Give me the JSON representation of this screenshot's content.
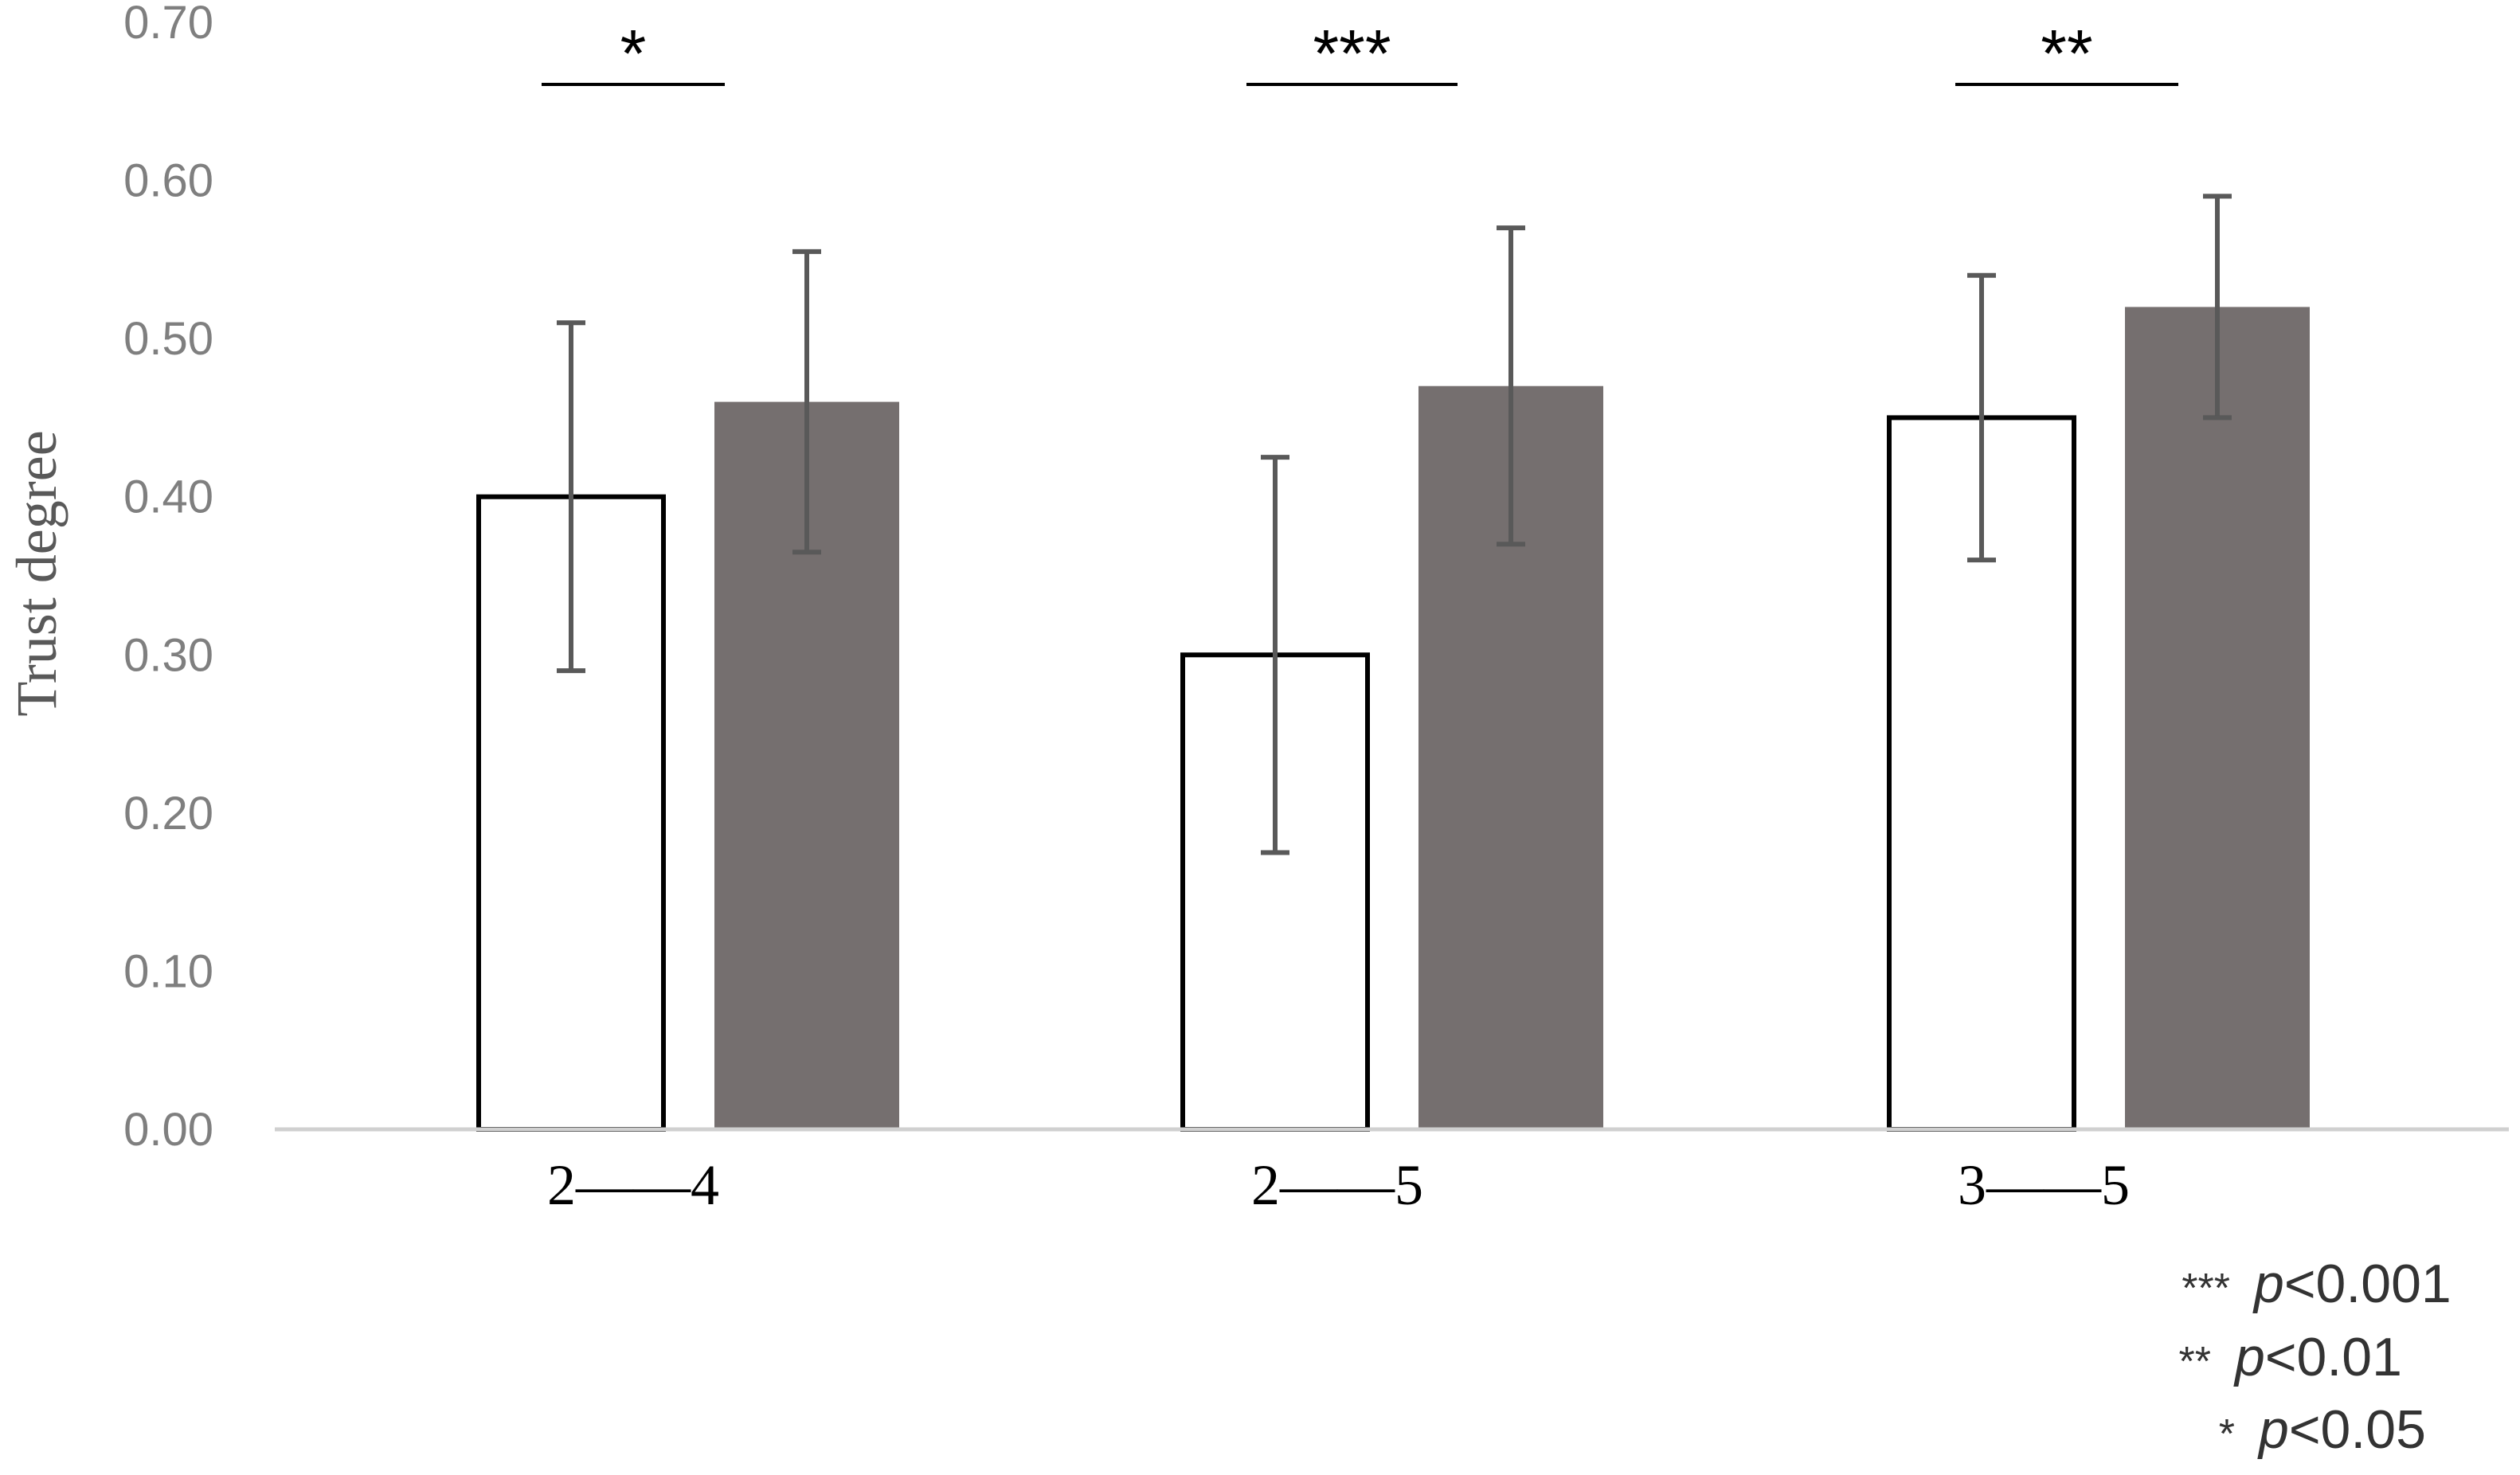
{
  "chart_data": {
    "type": "bar",
    "title": "",
    "xlabel": "",
    "ylabel": "Trust degree",
    "ylim": [
      0,
      0.7
    ],
    "yticks": [
      "0.00",
      "0.10",
      "0.20",
      "0.30",
      "0.40",
      "0.50",
      "0.60",
      "0.70"
    ],
    "categories": [
      "2——4",
      "2——5",
      "3——5"
    ],
    "series": [
      {
        "values": [
          0.4,
          0.3,
          0.45
        ],
        "err_low": [
          0.29,
          0.175,
          0.36
        ],
        "err_high": [
          0.51,
          0.425,
          0.54
        ],
        "color": "#ffffff",
        "edge": "#000000"
      },
      {
        "values": [
          0.46,
          0.47,
          0.52
        ],
        "err_low": [
          0.365,
          0.37,
          0.45
        ],
        "err_high": [
          0.555,
          0.57,
          0.59
        ],
        "color": "#756f6f",
        "edge": "#756f6f"
      }
    ],
    "significance": [
      "*",
      "***",
      "**"
    ],
    "grid": false,
    "legend": "none",
    "notes": [
      {
        "stars": "***",
        "p": "p",
        "text": "<0.001"
      },
      {
        "stars": "**",
        "p": "p",
        "text": "<0.01"
      },
      {
        "stars": "*",
        "p": "p",
        "text": "<0.05"
      }
    ]
  }
}
